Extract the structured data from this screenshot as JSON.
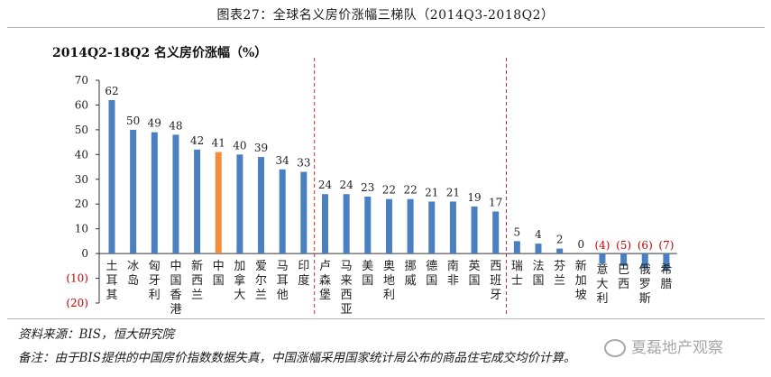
{
  "figure_title": "图表27：全球名义房价涨幅三梯队（2014Q3-2018Q2）",
  "source": "资料来源：BIS，恒大研究院",
  "note": "备注：由于BIS提供的中国房价指数数据失真，中国涨幅采用国家统计局公布的商品住宅成交均价计算。",
  "watermark": "夏磊地产观察",
  "colors": {
    "bar": "#4a7fc1",
    "bar_highlight": "#f28d3c",
    "negative_label": "#cc0000",
    "divider": "#c03030",
    "axis": "#333333"
  },
  "chart_data": {
    "type": "bar",
    "title": "2014Q2-18Q2 名义房价涨幅（%）",
    "xlabel": "",
    "ylabel": "",
    "ylim": [
      -20,
      70
    ],
    "yticks": [
      -20,
      -10,
      0,
      10,
      20,
      30,
      40,
      50,
      60,
      70
    ],
    "ytick_labels": [
      "(20)",
      "(10)",
      "0",
      "10",
      "20",
      "30",
      "40",
      "50",
      "60",
      "70"
    ],
    "grid": false,
    "categories": [
      "土耳其",
      "冰岛",
      "匈牙利",
      "中国香港",
      "新西兰",
      "中国",
      "加拿大",
      "爱尔兰",
      "马耳他",
      "印度",
      "卢森堡",
      "马来西亚",
      "美国",
      "奥地利",
      "挪威",
      "德国",
      "南非",
      "英国",
      "西班牙",
      "瑞士",
      "法国",
      "芬兰",
      "新加坡",
      "意大利",
      "巴西",
      "俄罗斯",
      "希腊"
    ],
    "values": [
      62,
      50,
      49,
      48,
      42,
      41,
      40,
      39,
      34,
      33,
      24,
      24,
      23,
      22,
      22,
      21,
      21,
      19,
      17,
      5,
      4,
      2,
      0,
      -4,
      -5,
      -6,
      -7
    ],
    "value_labels": [
      "62",
      "50",
      "49",
      "48",
      "42",
      "41",
      "40",
      "39",
      "34",
      "33",
      "24",
      "24",
      "23",
      "22",
      "22",
      "21",
      "21",
      "19",
      "17",
      "5",
      "4",
      "2",
      "0",
      "(4)",
      "(5)",
      "(6)",
      "(7)"
    ],
    "highlight_category": "中国",
    "tier_dividers_after": [
      "印度",
      "西班牙"
    ]
  }
}
